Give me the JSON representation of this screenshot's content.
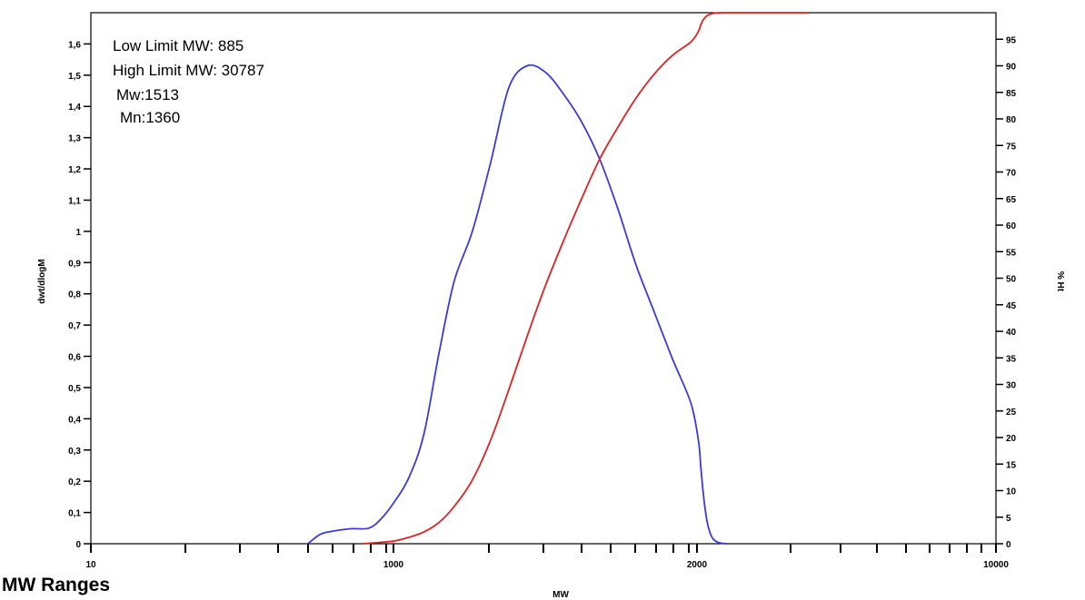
{
  "chart_data": {
    "type": "line",
    "xlabel": "MW",
    "ylabel": "dwt/dlogM",
    "y2label": "% Ht",
    "x_ticks": [
      {
        "value": 10,
        "label": "10"
      },
      {
        "value": 1000,
        "label": "1000"
      },
      {
        "value": 2000,
        "label": "2000"
      },
      {
        "value": 10000,
        "label": "10000"
      }
    ],
    "ylim": [
      0,
      1.7
    ],
    "y_ticks": [
      "0",
      "0,1",
      "0,2",
      "0,3",
      "0,4",
      "0,5",
      "0,6",
      "0,7",
      "0,8",
      "0,9",
      "1",
      "1,1",
      "1,2",
      "1,3",
      "1,4",
      "1,5",
      "1,6"
    ],
    "y2lim": [
      0,
      100
    ],
    "y2_ticks": [
      "0",
      "5",
      "10",
      "15",
      "20",
      "25",
      "30",
      "35",
      "40",
      "45",
      "50",
      "55",
      "60",
      "65",
      "70",
      "75",
      "80",
      "85",
      "90",
      "95"
    ],
    "annotations": [
      "Low Limit MW: 885",
      "High Limit MW: 30787",
      "Mw:1513",
      "Mn:1360"
    ],
    "series": [
      {
        "color": "#3a3adc",
        "axis": "left",
        "x": [
          720,
          760,
          800,
          860,
          920,
          960,
          1000,
          1050,
          1100,
          1150,
          1200,
          1260,
          1320,
          1380,
          1440,
          1500,
          1560,
          1620,
          1680,
          1740,
          1800,
          1860,
          1920,
          1980,
          2040,
          2100,
          2160,
          2220,
          2280,
          2350,
          2420,
          2500,
          2600,
          2700,
          2800
        ],
        "y": [
          0.0,
          0.03,
          0.04,
          0.048,
          0.05,
          0.08,
          0.13,
          0.21,
          0.35,
          0.61,
          0.84,
          1.0,
          1.22,
          1.46,
          1.53,
          1.51,
          1.44,
          1.35,
          1.23,
          1.07,
          0.89,
          0.74,
          0.59,
          0.45,
          0.33,
          0.25,
          0.17,
          0.11,
          0.065,
          0.035,
          0.017,
          0.008,
          0.003,
          0.001,
          0.0
        ]
      },
      {
        "color": "#e02020",
        "axis": "right",
        "x": [
          900,
          1000,
          1050,
          1100,
          1150,
          1200,
          1260,
          1320,
          1380,
          1440,
          1500,
          1560,
          1620,
          1680,
          1740,
          1800,
          1860,
          1920,
          1980,
          2040,
          2100,
          2160,
          2220,
          2280,
          2350,
          2420,
          2500,
          2600,
          2700,
          2800,
          3000,
          4000,
          5000
        ],
        "y": [
          0.0,
          0.5,
          1.2,
          2.2,
          4.0,
          7.0,
          12.0,
          19.5,
          29.0,
          39.0,
          48.5,
          57.0,
          65.0,
          72.5,
          78.5,
          84.0,
          88.5,
          92.0,
          94.5,
          96.5,
          97.7,
          98.6,
          99.1,
          99.5,
          99.7,
          99.85,
          99.93,
          99.97,
          100,
          100,
          100,
          100,
          100
        ]
      }
    ]
  },
  "page": {
    "section_title": "MW Ranges"
  }
}
